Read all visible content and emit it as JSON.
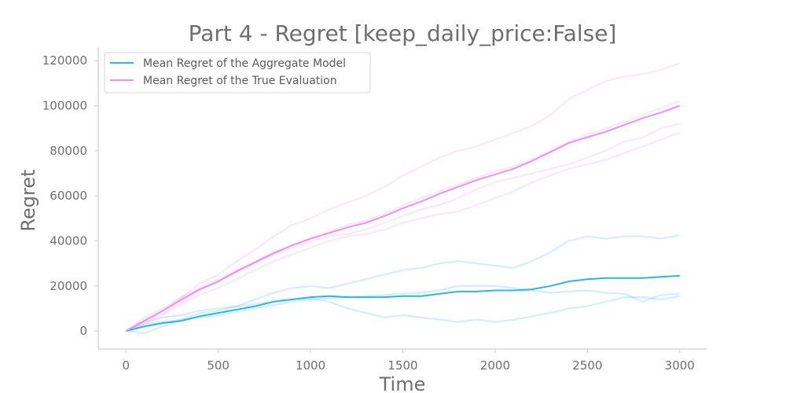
{
  "chart_data": {
    "type": "line",
    "title": "Part 4 - Regret [keep_daily_price:False]",
    "xlabel": "Time",
    "ylabel": "Regret",
    "xlim": [
      -150,
      3150
    ],
    "ylim": [
      -8000,
      126000
    ],
    "xticks": [
      "0",
      "500",
      "1000",
      "1500",
      "2000",
      "2500",
      "3000"
    ],
    "yticks": [
      "0",
      "20000",
      "40000",
      "60000",
      "80000",
      "100000",
      "120000"
    ],
    "grid": false,
    "legend": "top-left",
    "series": [
      {
        "name": "Mean Regret of the Aggregate Model",
        "color": "#2db4e8",
        "x": [
          0,
          100,
          200,
          300,
          400,
          500,
          600,
          700,
          800,
          900,
          1000,
          1100,
          1200,
          1300,
          1400,
          1500,
          1600,
          1700,
          1800,
          1900,
          2000,
          2100,
          2200,
          2300,
          2400,
          2500,
          2600,
          2700,
          2800,
          2900,
          3000
        ],
        "y": [
          0,
          2000,
          3500,
          4500,
          6500,
          8000,
          9500,
          11000,
          13000,
          14000,
          15000,
          15500,
          15000,
          15000,
          15000,
          15500,
          15500,
          16500,
          17500,
          17500,
          18000,
          18000,
          18500,
          20000,
          22000,
          23000,
          23500,
          23500,
          23500,
          24000,
          24500
        ],
        "runs": [
          [
            [
              0,
              0
            ],
            [
              100,
              -1000
            ],
            [
              200,
              2000
            ],
            [
              300,
              5000
            ],
            [
              400,
              8000
            ],
            [
              500,
              9000
            ],
            [
              600,
              11000
            ],
            [
              700,
              14000
            ],
            [
              800,
              17000
            ],
            [
              900,
              19000
            ],
            [
              1000,
              20000
            ],
            [
              1100,
              19000
            ],
            [
              1200,
              21000
            ],
            [
              1300,
              23000
            ],
            [
              1400,
              25000
            ],
            [
              1500,
              27000
            ],
            [
              1600,
              28000
            ],
            [
              1700,
              30000
            ],
            [
              1800,
              31000
            ],
            [
              1900,
              30000
            ],
            [
              2000,
              29000
            ],
            [
              2100,
              28000
            ],
            [
              2200,
              31000
            ],
            [
              2300,
              35000
            ],
            [
              2400,
              40000
            ],
            [
              2500,
              42000
            ],
            [
              2600,
              41000
            ],
            [
              2700,
              42000
            ],
            [
              2800,
              42000
            ],
            [
              2900,
              41000
            ],
            [
              3000,
              42500
            ]
          ],
          [
            [
              0,
              0
            ],
            [
              100,
              3000
            ],
            [
              200,
              4000
            ],
            [
              300,
              5000
            ],
            [
              400,
              6000
            ],
            [
              500,
              7000
            ],
            [
              600,
              8500
            ],
            [
              700,
              10000
            ],
            [
              800,
              11500
            ],
            [
              900,
              13000
            ],
            [
              1000,
              14000
            ],
            [
              1100,
              14500
            ],
            [
              1200,
              15000
            ],
            [
              1300,
              15500
            ],
            [
              1400,
              16000
            ],
            [
              1500,
              16500
            ],
            [
              1600,
              17000
            ],
            [
              1700,
              18000
            ],
            [
              1800,
              20000
            ],
            [
              1900,
              20000
            ],
            [
              2000,
              20000
            ],
            [
              2100,
              19000
            ],
            [
              2200,
              18000
            ],
            [
              2300,
              17000
            ],
            [
              2400,
              17500
            ],
            [
              2500,
              18000
            ],
            [
              2600,
              17000
            ],
            [
              2700,
              16500
            ],
            [
              2800,
              13000
            ],
            [
              2900,
              16000
            ],
            [
              3000,
              16500
            ]
          ],
          [
            [
              0,
              0
            ],
            [
              100,
              4000
            ],
            [
              200,
              6000
            ],
            [
              300,
              7000
            ],
            [
              400,
              9000
            ],
            [
              500,
              10000
            ],
            [
              600,
              11000
            ],
            [
              700,
              12000
            ],
            [
              800,
              13000
            ],
            [
              900,
              14000
            ],
            [
              1000,
              14500
            ],
            [
              1100,
              13000
            ],
            [
              1200,
              10000
            ],
            [
              1300,
              8000
            ],
            [
              1400,
              6000
            ],
            [
              1500,
              7000
            ],
            [
              1600,
              6000
            ],
            [
              1700,
              5000
            ],
            [
              1800,
              4000
            ],
            [
              1900,
              5000
            ],
            [
              2000,
              4000
            ],
            [
              2100,
              5000
            ],
            [
              2200,
              6500
            ],
            [
              2300,
              8000
            ],
            [
              2400,
              10000
            ],
            [
              2500,
              11000
            ],
            [
              2600,
              13000
            ],
            [
              2700,
              15000
            ],
            [
              2800,
              15000
            ],
            [
              2900,
              14000
            ],
            [
              3000,
              15500
            ]
          ]
        ]
      },
      {
        "name": "Mean Regret of the True Evaluation",
        "color": "#ec91ee",
        "x": [
          0,
          100,
          200,
          300,
          400,
          500,
          600,
          700,
          800,
          900,
          1000,
          1100,
          1200,
          1300,
          1400,
          1500,
          1600,
          1700,
          1800,
          1900,
          2000,
          2100,
          2200,
          2300,
          2400,
          2500,
          2600,
          2700,
          2800,
          2900,
          3000
        ],
        "y": [
          0,
          4500,
          9000,
          14000,
          18500,
          22000,
          26500,
          30500,
          34500,
          38000,
          41000,
          43500,
          46000,
          48000,
          51000,
          54500,
          57500,
          61000,
          64000,
          67000,
          69500,
          72000,
          75500,
          79500,
          83500,
          86000,
          88500,
          91500,
          94500,
          97000,
          100000
        ],
        "runs": [
          [
            [
              0,
              0
            ],
            [
              100,
              5000
            ],
            [
              200,
              9000
            ],
            [
              300,
              15000
            ],
            [
              400,
              21000
            ],
            [
              500,
              25000
            ],
            [
              600,
              31000
            ],
            [
              700,
              36000
            ],
            [
              800,
              42000
            ],
            [
              900,
              47000
            ],
            [
              1000,
              50000
            ],
            [
              1100,
              54000
            ],
            [
              1200,
              57000
            ],
            [
              1300,
              60000
            ],
            [
              1400,
              64000
            ],
            [
              1500,
              69000
            ],
            [
              1600,
              73000
            ],
            [
              1700,
              77000
            ],
            [
              1800,
              80000
            ],
            [
              1900,
              82000
            ],
            [
              2000,
              85000
            ],
            [
              2100,
              88000
            ],
            [
              2200,
              91000
            ],
            [
              2300,
              96000
            ],
            [
              2400,
              103000
            ],
            [
              2500,
              107000
            ],
            [
              2600,
              111000
            ],
            [
              2700,
              113000
            ],
            [
              2800,
              114000
            ],
            [
              2900,
              116000
            ],
            [
              3000,
              119000
            ]
          ],
          [
            [
              0,
              0
            ],
            [
              100,
              3000
            ],
            [
              200,
              7000
            ],
            [
              300,
              12000
            ],
            [
              400,
              16000
            ],
            [
              500,
              19000
            ],
            [
              600,
              23000
            ],
            [
              700,
              27000
            ],
            [
              800,
              31000
            ],
            [
              900,
              34000
            ],
            [
              1000,
              37000
            ],
            [
              1100,
              40000
            ],
            [
              1200,
              42000
            ],
            [
              1300,
              43000
            ],
            [
              1400,
              45000
            ],
            [
              1500,
              48000
            ],
            [
              1600,
              50000
            ],
            [
              1700,
              52000
            ],
            [
              1800,
              53000
            ],
            [
              1900,
              56000
            ],
            [
              2000,
              59000
            ],
            [
              2100,
              62000
            ],
            [
              2200,
              66000
            ],
            [
              2300,
              69000
            ],
            [
              2400,
              72000
            ],
            [
              2500,
              74000
            ],
            [
              2600,
              76000
            ],
            [
              2700,
              79000
            ],
            [
              2800,
              82000
            ],
            [
              2900,
              85000
            ],
            [
              3000,
              88000
            ]
          ],
          [
            [
              0,
              0
            ],
            [
              100,
              4000
            ],
            [
              200,
              8000
            ],
            [
              300,
              13000
            ],
            [
              400,
              18000
            ],
            [
              500,
              22000
            ],
            [
              600,
              26000
            ],
            [
              700,
              30000
            ],
            [
              800,
              34000
            ],
            [
              900,
              37000
            ],
            [
              1000,
              40000
            ],
            [
              1100,
              42000
            ],
            [
              1200,
              43000
            ],
            [
              1300,
              45000
            ],
            [
              1400,
              48000
            ],
            [
              1500,
              51000
            ],
            [
              1600,
              54000
            ],
            [
              1700,
              56000
            ],
            [
              1800,
              59000
            ],
            [
              1900,
              63000
            ],
            [
              2000,
              66000
            ],
            [
              2100,
              68000
            ],
            [
              2200,
              70000
            ],
            [
              2300,
              72000
            ],
            [
              2400,
              74000
            ],
            [
              2500,
              77000
            ],
            [
              2600,
              80000
            ],
            [
              2700,
              84000
            ],
            [
              2800,
              86000
            ],
            [
              2900,
              90000
            ],
            [
              3000,
              92000
            ]
          ],
          [
            [
              0,
              0
            ],
            [
              100,
              6000
            ],
            [
              200,
              10000
            ],
            [
              300,
              15000
            ],
            [
              400,
              19000
            ],
            [
              500,
              23000
            ],
            [
              600,
              27000
            ],
            [
              700,
              31000
            ],
            [
              800,
              35000
            ],
            [
              900,
              38000
            ],
            [
              1000,
              41000
            ],
            [
              1100,
              44000
            ],
            [
              1200,
              47000
            ],
            [
              1300,
              49000
            ],
            [
              1400,
              52000
            ],
            [
              1500,
              56000
            ],
            [
              1600,
              59000
            ],
            [
              1700,
              62000
            ],
            [
              1800,
              65000
            ],
            [
              1900,
              68000
            ],
            [
              2000,
              71000
            ],
            [
              2100,
              73000
            ],
            [
              2200,
              76000
            ],
            [
              2300,
              80000
            ],
            [
              2400,
              84000
            ],
            [
              2500,
              87000
            ],
            [
              2600,
              90000
            ],
            [
              2700,
              93000
            ],
            [
              2800,
              96000
            ],
            [
              2900,
              99000
            ],
            [
              3000,
              102000
            ]
          ]
        ]
      }
    ]
  }
}
